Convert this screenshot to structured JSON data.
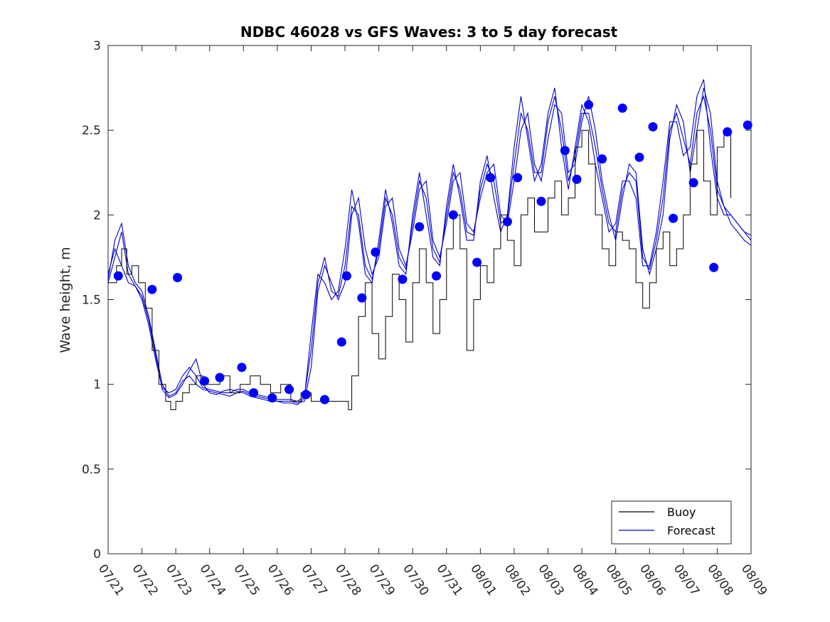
{
  "chart_data": {
    "type": "line",
    "title": "NDBC 46028 vs GFS Waves: 3 to 5 day forecast",
    "xlabel": "",
    "ylabel": "Wave height, m",
    "ylim": [
      0,
      3
    ],
    "xlim": [
      0,
      19
    ],
    "grid": false,
    "legend_position": "bottom-right",
    "x_tick_labels": [
      "07/21",
      "07/22",
      "07/23",
      "07/24",
      "07/25",
      "07/26",
      "07/27",
      "07/28",
      "07/29",
      "07/30",
      "07/31",
      "08/01",
      "08/02",
      "08/03",
      "08/04",
      "08/05",
      "08/06",
      "08/07",
      "08/08",
      "08/09"
    ],
    "y_ticks": [
      0,
      0.5,
      1,
      1.5,
      2,
      2.5,
      3
    ],
    "y_tick_labels": [
      "0",
      "0.5",
      "1",
      "1.5",
      "2",
      "2.5",
      "3"
    ],
    "x_units": "days since 07/21",
    "series": [
      {
        "name": "Buoy",
        "color": "#000000",
        "style": "step",
        "x": [
          0,
          0.25,
          0.4,
          0.55,
          0.7,
          0.9,
          1.1,
          1.3,
          1.5,
          1.7,
          1.85,
          2,
          2.2,
          2.4,
          2.6,
          2.8,
          3,
          3.3,
          3.6,
          3.9,
          4.2,
          4.5,
          4.8,
          5.1,
          5.4,
          5.7,
          6,
          6.3,
          6.6,
          6.9,
          7.0,
          7.1,
          7.2,
          7.4,
          7.6,
          7.8,
          8.0,
          8.2,
          8.4,
          8.6,
          8.8,
          9.0,
          9.2,
          9.4,
          9.6,
          9.8,
          10.0,
          10.2,
          10.4,
          10.6,
          10.8,
          11.0,
          11.2,
          11.4,
          11.6,
          11.8,
          12.0,
          12.2,
          12.4,
          12.6,
          12.8,
          13.0,
          13.2,
          13.4,
          13.6,
          13.8,
          14.0,
          14.2,
          14.4,
          14.6,
          14.8,
          15.0,
          15.2,
          15.4,
          15.6,
          15.8,
          16.0,
          16.2,
          16.4,
          16.6,
          16.8,
          17.0,
          17.2,
          17.4,
          17.6,
          17.8,
          18.0,
          18.2,
          18.4
        ],
        "y": [
          1.6,
          1.7,
          1.8,
          1.65,
          1.7,
          1.6,
          1.45,
          1.2,
          1.0,
          0.9,
          0.85,
          0.9,
          0.95,
          1.0,
          1.05,
          1.0,
          1.0,
          1.05,
          0.95,
          1.0,
          1.05,
          1.0,
          0.95,
          1.0,
          0.9,
          0.95,
          0.9,
          0.9,
          0.9,
          0.9,
          0.9,
          0.85,
          1.05,
          1.4,
          1.6,
          1.3,
          1.15,
          1.4,
          1.65,
          1.5,
          1.25,
          1.6,
          1.8,
          1.6,
          1.3,
          1.5,
          1.8,
          2.0,
          1.8,
          1.2,
          1.5,
          1.7,
          1.6,
          1.8,
          2.0,
          1.85,
          1.7,
          2.0,
          2.1,
          1.9,
          1.9,
          2.1,
          2.2,
          2.0,
          2.1,
          2.4,
          2.5,
          2.3,
          2.0,
          1.8,
          1.7,
          1.9,
          1.85,
          1.8,
          1.6,
          1.45,
          1.6,
          1.8,
          1.9,
          1.7,
          1.8,
          2.0,
          2.3,
          2.5,
          2.2,
          2.0,
          2.4,
          2.5,
          2.1
        ]
      },
      {
        "name": "Forecast",
        "color": "#0000cd",
        "style": "lines",
        "runs": [
          {
            "x": [
              0,
              0.2,
              0.4,
              0.6,
              0.8,
              1.0,
              1.2,
              1.4,
              1.6,
              1.8,
              2.0,
              2.2,
              2.4,
              2.6,
              2.8,
              3.0,
              3.2,
              3.4,
              3.6,
              3.8,
              4.0,
              4.2,
              4.4,
              4.6,
              4.8,
              5.0,
              5.2,
              5.4,
              5.6,
              5.8,
              6.0,
              6.2,
              6.4,
              6.6,
              6.8,
              7.0,
              7.2,
              7.4,
              7.6,
              7.8,
              8.0,
              8.2,
              8.4,
              8.6,
              8.8,
              9.0,
              9.2,
              9.4,
              9.6,
              9.8,
              10.0,
              10.2,
              10.4,
              10.6,
              10.8,
              11.0,
              11.2,
              11.4,
              11.6,
              11.8,
              12.0,
              12.2,
              12.4,
              12.6,
              12.8,
              13.0,
              13.2,
              13.4,
              13.6,
              13.8,
              14.0,
              14.2,
              14.4,
              14.6,
              14.8,
              15.0,
              15.2,
              15.4,
              15.6,
              15.8,
              16.0,
              16.2,
              16.4,
              16.6,
              16.8,
              17.0,
              17.2,
              17.4,
              17.6,
              17.8,
              18.0,
              18.2,
              18.4,
              18.6,
              18.8,
              19.0
            ],
            "y": [
              1.62,
              1.85,
              1.95,
              1.7,
              1.6,
              1.55,
              1.4,
              1.2,
              1.0,
              0.93,
              0.95,
              1.02,
              1.05,
              1.0,
              0.97,
              0.96,
              0.95,
              0.94,
              0.93,
              0.95,
              0.96,
              0.94,
              0.93,
              0.92,
              0.91,
              0.9,
              0.9,
              0.9,
              0.89,
              0.9,
              1.1,
              1.55,
              1.7,
              1.6,
              1.5,
              1.6,
              2.0,
              2.1,
              1.8,
              1.65,
              1.75,
              2.05,
              2.1,
              1.8,
              1.7,
              1.9,
              2.15,
              2.2,
              1.85,
              1.75,
              1.95,
              2.2,
              2.25,
              1.95,
              1.9,
              2.1,
              2.25,
              2.3,
              2.0,
              1.95,
              2.2,
              2.5,
              2.6,
              2.3,
              2.2,
              2.45,
              2.65,
              2.6,
              2.25,
              2.3,
              2.55,
              2.7,
              2.5,
              2.2,
              2.0,
              1.85,
              2.1,
              2.3,
              2.25,
              1.8,
              1.65,
              1.8,
              2.0,
              2.45,
              2.65,
              2.55,
              2.25,
              2.5,
              2.75,
              2.6,
              2.2,
              2.05,
              1.95,
              1.9,
              1.85,
              1.82
            ]
          },
          {
            "x": [
              0,
              0.2,
              0.4,
              0.6,
              0.8,
              1.0,
              1.2,
              1.4,
              1.6,
              1.8,
              2.0,
              2.2,
              2.4,
              2.6,
              2.8,
              3.0,
              3.2,
              3.4,
              3.6,
              3.8,
              4.0,
              4.2,
              4.4,
              4.6,
              4.8,
              5.0,
              5.2,
              5.4,
              5.6,
              5.8,
              6.0,
              6.2,
              6.4,
              6.6,
              6.8,
              7.0,
              7.2,
              7.4,
              7.6,
              7.8,
              8.0,
              8.2,
              8.4,
              8.6,
              8.8,
              9.0,
              9.2,
              9.4,
              9.6,
              9.8,
              10.0,
              10.2,
              10.4,
              10.6,
              10.8,
              11.0,
              11.2,
              11.4,
              11.6,
              11.8,
              12.0,
              12.2,
              12.4,
              12.6,
              12.8,
              13.0,
              13.2,
              13.4,
              13.6,
              13.8,
              14.0,
              14.2,
              14.4,
              14.6,
              14.8,
              15.0,
              15.2,
              15.4,
              15.6,
              15.8,
              16.0,
              16.2,
              16.4,
              16.6,
              16.8,
              17.0,
              17.2,
              17.4,
              17.6,
              17.8,
              18.0,
              18.2,
              18.4,
              18.6,
              18.8,
              19.0
            ],
            "y": [
              1.6,
              1.75,
              1.9,
              1.65,
              1.58,
              1.5,
              1.35,
              1.15,
              0.98,
              0.95,
              0.97,
              1.05,
              1.1,
              1.05,
              0.98,
              0.97,
              0.96,
              0.95,
              0.95,
              0.97,
              0.97,
              0.95,
              0.94,
              0.93,
              0.92,
              0.91,
              0.91,
              0.91,
              0.9,
              0.93,
              1.2,
              1.6,
              1.75,
              1.55,
              1.52,
              1.7,
              2.05,
              2.0,
              1.7,
              1.62,
              1.8,
              2.1,
              2.0,
              1.75,
              1.68,
              1.95,
              2.2,
              2.1,
              1.8,
              1.72,
              2.0,
              2.25,
              2.15,
              1.9,
              1.88,
              2.15,
              2.3,
              2.2,
              1.95,
              1.98,
              2.3,
              2.6,
              2.5,
              2.25,
              2.25,
              2.55,
              2.7,
              2.5,
              2.2,
              2.35,
              2.6,
              2.6,
              2.4,
              2.15,
              1.95,
              1.9,
              2.15,
              2.25,
              2.2,
              1.75,
              1.68,
              1.85,
              2.1,
              2.5,
              2.6,
              2.45,
              2.3,
              2.6,
              2.7,
              2.5,
              2.15,
              2.05,
              2.0,
              1.95,
              1.9,
              1.85
            ]
          },
          {
            "x": [
              0,
              0.2,
              0.4,
              0.6,
              0.8,
              1.0,
              1.2,
              1.4,
              1.6,
              1.8,
              2.0,
              2.2,
              2.4,
              2.6,
              2.8,
              3.0,
              3.2,
              3.4,
              3.6,
              3.8,
              4.0,
              4.2,
              4.4,
              4.6,
              4.8,
              5.0,
              5.2,
              5.4,
              5.6,
              5.8,
              6.0,
              6.2,
              6.4,
              6.6,
              6.8,
              7.0,
              7.2,
              7.4,
              7.6,
              7.8,
              8.0,
              8.2,
              8.4,
              8.6,
              8.8,
              9.0,
              9.2,
              9.4,
              9.6,
              9.8,
              10.0,
              10.2,
              10.4,
              10.6,
              10.8,
              11.0,
              11.2,
              11.4,
              11.6,
              11.8,
              12.0,
              12.2,
              12.4,
              12.6,
              12.8,
              13.0,
              13.2,
              13.4,
              13.6,
              13.8,
              14.0,
              14.2,
              14.4,
              14.6,
              14.8,
              15.0,
              15.2,
              15.4,
              15.6,
              15.8,
              16.0,
              16.2,
              16.4,
              16.6,
              16.8,
              17.0,
              17.2,
              17.4,
              17.6,
              17.8,
              18.0,
              18.2,
              18.4,
              18.6,
              18.8,
              19.0
            ],
            "y": [
              1.65,
              1.8,
              1.7,
              1.6,
              1.58,
              1.52,
              1.38,
              1.18,
              0.97,
              0.92,
              0.94,
              1.0,
              1.08,
              1.15,
              1.0,
              0.95,
              0.94,
              0.96,
              0.97,
              0.96,
              0.95,
              0.93,
              0.92,
              0.91,
              0.9,
              0.9,
              0.89,
              0.89,
              0.88,
              0.92,
              1.3,
              1.65,
              1.6,
              1.5,
              1.55,
              1.8,
              2.15,
              1.95,
              1.65,
              1.6,
              1.85,
              2.15,
              1.95,
              1.7,
              1.65,
              2.0,
              2.25,
              2.0,
              1.75,
              1.7,
              2.05,
              2.3,
              2.1,
              1.85,
              1.85,
              2.2,
              2.35,
              2.1,
              1.9,
              2.0,
              2.4,
              2.7,
              2.45,
              2.2,
              2.3,
              2.6,
              2.75,
              2.4,
              2.15,
              2.4,
              2.65,
              2.55,
              2.3,
              2.1,
              1.9,
              1.95,
              2.2,
              2.2,
              2.1,
              1.7,
              1.7,
              1.9,
              2.2,
              2.55,
              2.55,
              2.35,
              2.4,
              2.7,
              2.8,
              2.4,
              2.1,
              2.0,
              2.0,
              1.95,
              1.9,
              1.88
            ]
          }
        ]
      }
    ],
    "forecast_markers": {
      "name": "Forecast",
      "color": "#0000ff",
      "x": [
        0.3,
        1.3,
        2.05,
        2.85,
        3.3,
        3.95,
        4.3,
        4.85,
        5.35,
        5.85,
        6.4,
        6.9,
        7.05,
        7.5,
        7.9,
        8.7,
        9.2,
        9.7,
        10.2,
        10.9,
        11.3,
        11.8,
        12.1,
        12.8,
        13.5,
        13.85,
        14.2,
        14.6,
        15.2,
        15.7,
        16.1,
        16.7,
        17.3,
        17.9,
        18.3,
        18.9
      ],
      "y": [
        1.64,
        1.56,
        1.63,
        1.02,
        1.04,
        1.1,
        0.95,
        0.92,
        0.97,
        0.94,
        0.91,
        1.25,
        1.64,
        1.51,
        1.78,
        1.62,
        1.93,
        1.64,
        2.0,
        1.72,
        2.22,
        1.96,
        2.22,
        2.08,
        2.38,
        2.21,
        2.65,
        2.33,
        2.63,
        2.34,
        2.52,
        1.98,
        2.19,
        1.69,
        2.49,
        2.53
      ]
    },
    "legend": [
      {
        "label": "Buoy",
        "color": "#000000"
      },
      {
        "label": "Forecast",
        "color": "#0000cd"
      }
    ]
  }
}
